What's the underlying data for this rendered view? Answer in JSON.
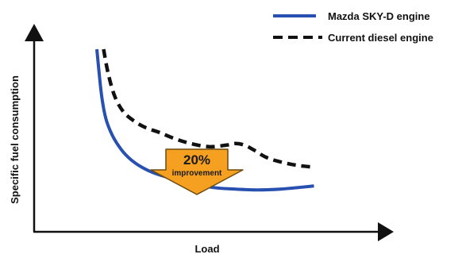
{
  "chart_data": {
    "type": "line",
    "title": "",
    "xlabel": "Load",
    "ylabel": "Specific fuel consumption",
    "xlim": [
      0,
      100
    ],
    "ylim": [
      0,
      100
    ],
    "grid": false,
    "legend_position": "top-right",
    "axis_ticks": false,
    "series": [
      {
        "name": "Mazda SKY-D engine",
        "style": "solid",
        "color": "#2750b0",
        "x": [
          0,
          2,
          4,
          7,
          11,
          15,
          20,
          26,
          33,
          42,
          52,
          62,
          72,
          82,
          90,
          97
        ],
        "y": [
          100,
          72,
          56,
          45,
          36,
          30,
          25,
          21,
          18,
          15,
          12,
          11,
          10.5,
          11,
          12,
          13
        ]
      },
      {
        "name": "Current diesel engine",
        "style": "dashed",
        "color": "#111111",
        "x": [
          3,
          5,
          8,
          12,
          17,
          22,
          28,
          35,
          42,
          50,
          58,
          62,
          66,
          70,
          76,
          83,
          90,
          97
        ],
        "y": [
          100,
          85,
          70,
          60,
          54,
          50,
          47,
          43,
          40,
          38,
          39,
          40,
          39,
          36,
          31,
          28,
          26,
          25
        ]
      }
    ],
    "annotations": [
      {
        "type": "arrow-down",
        "text": "20%",
        "subtext": "improvement",
        "color": "#f5a020",
        "at_x": 32
      }
    ]
  }
}
